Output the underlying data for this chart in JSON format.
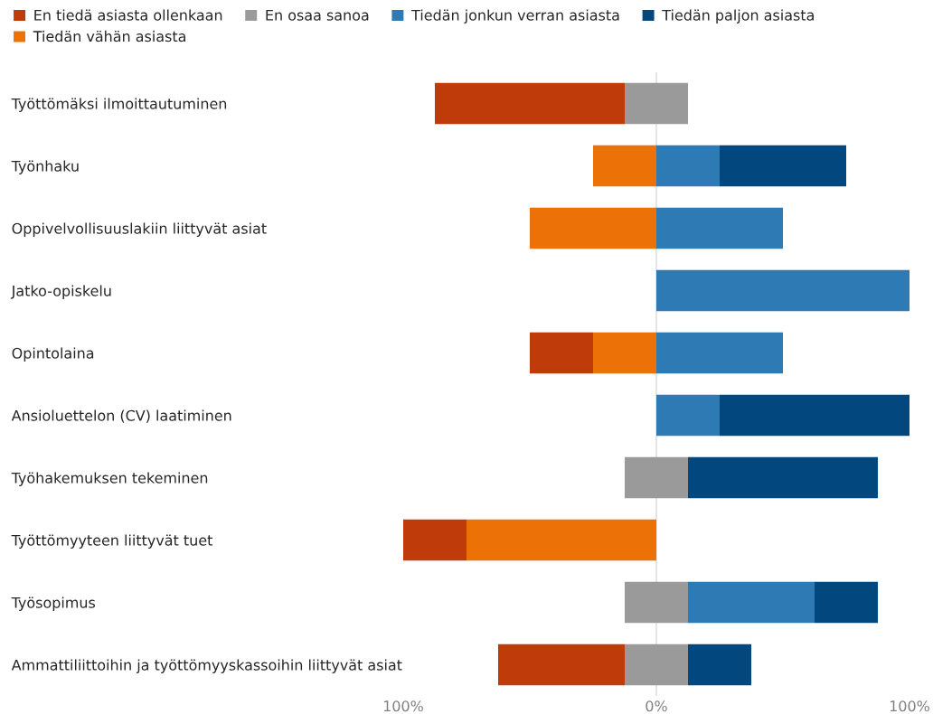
{
  "chart_data": {
    "type": "bar",
    "orientation": "horizontal",
    "categories": [
      "Työttömäksi ilmoittautuminen",
      "Työnhaku",
      "Oppivelvollisuuslakiin liittyvät asiat",
      "Jatko-opiskelu",
      "Opintolaina",
      "Ansioluettelon (CV) laatiminen",
      "Työhakemuksen tekeminen",
      "Työttömyyteen liittyvät tuet",
      "Työsopimus",
      "Ammattiliittoihin ja työttömyyskassoihin liittyvät asiat"
    ],
    "series": [
      {
        "name": "En tiedä asiasta ollenkaan",
        "color": "#bf3c0a",
        "values": [
          75,
          null,
          null,
          null,
          25,
          null,
          null,
          25,
          null,
          50
        ],
        "base": [
          -87.5,
          null,
          null,
          null,
          -50,
          null,
          null,
          -100,
          null,
          -62.5
        ]
      },
      {
        "name": "Tiedän vähän asiasta",
        "color": "#ec7208",
        "values": [
          null,
          25,
          50,
          null,
          25,
          null,
          null,
          75,
          null,
          null
        ],
        "base": [
          null,
          -25,
          -50,
          null,
          -25,
          null,
          null,
          -75,
          null,
          null
        ]
      },
      {
        "name": "En osaa sanoa",
        "color": "#9a9a9a",
        "values": [
          25,
          null,
          null,
          null,
          null,
          null,
          25,
          null,
          25,
          25
        ],
        "base": [
          -12.5,
          null,
          null,
          null,
          null,
          null,
          -12.5,
          null,
          -12.5,
          -12.5
        ]
      },
      {
        "name": "Tiedän jonkun verran asiasta",
        "color": "#2e7ab4",
        "values": [
          null,
          25,
          50,
          100,
          50,
          25,
          null,
          null,
          50,
          null
        ],
        "base": [
          null,
          0,
          0,
          0,
          0,
          0,
          null,
          null,
          12.5,
          null
        ]
      },
      {
        "name": "Tiedän paljon asiasta",
        "color": "#03477f",
        "values": [
          null,
          50,
          null,
          null,
          null,
          75,
          75,
          null,
          25,
          25
        ],
        "base": [
          null,
          25,
          null,
          null,
          null,
          25,
          12.5,
          null,
          62.5,
          12.5
        ]
      }
    ],
    "xlim": [
      -100,
      100
    ],
    "xticks": [
      {
        "value": -100,
        "label": "100%"
      },
      {
        "value": 0,
        "label": "0%"
      },
      {
        "value": 100,
        "label": "100%"
      }
    ],
    "ref_lines": [
      {
        "axis": "x",
        "value": 0,
        "color": "#d9d9d9"
      }
    ],
    "legend": "top left",
    "grid": false
  }
}
